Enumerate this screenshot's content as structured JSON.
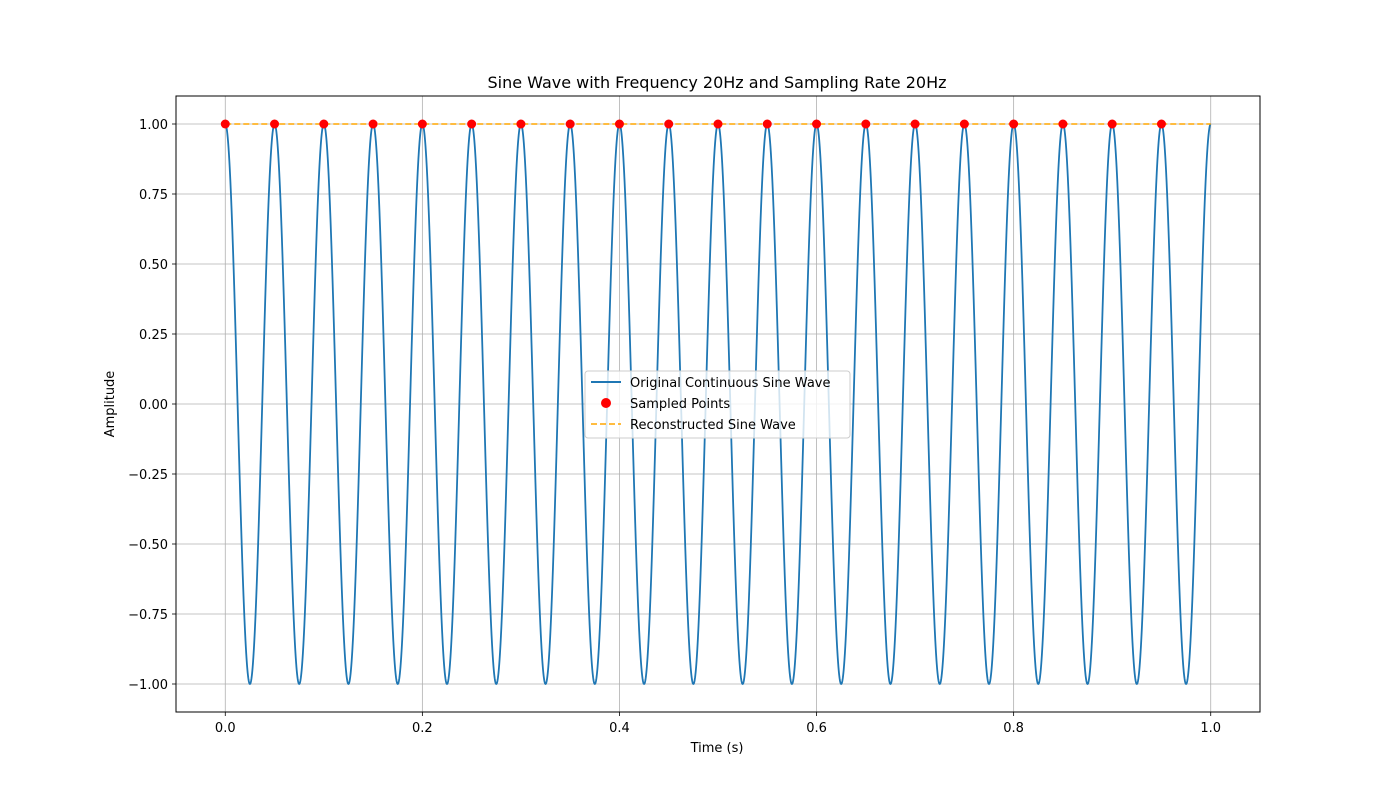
{
  "chart_data": {
    "type": "line",
    "title": "Sine Wave with Frequency 20Hz and Sampling Rate 20Hz",
    "xlabel": "Time (s)",
    "ylabel": "Amplitude",
    "xlim": [
      -0.05,
      1.05
    ],
    "ylim": [
      -1.1,
      1.1
    ],
    "x_ticks": [
      0.0,
      0.2,
      0.4,
      0.6,
      0.8,
      1.0
    ],
    "x_tick_labels": [
      "0.0",
      "0.2",
      "0.4",
      "0.6",
      "0.8",
      "1.0"
    ],
    "y_ticks": [
      1.0,
      0.75,
      0.5,
      0.25,
      0.0,
      -0.25,
      -0.5,
      -0.75,
      -1.0
    ],
    "y_tick_labels": [
      "1.00",
      "0.75",
      "0.50",
      "0.25",
      "0.00",
      "−0.25",
      "−0.50",
      "−0.75",
      "−1.00"
    ],
    "grid": true,
    "legend_position": "center",
    "series": [
      {
        "name": "Original Continuous Sine Wave",
        "kind": "line",
        "color": "#1f77b4",
        "function": "cos",
        "frequency": 20,
        "x_range": [
          0,
          1
        ],
        "amplitude": 1
      },
      {
        "name": "Sampled Points",
        "kind": "scatter",
        "color": "#ff0000",
        "x": [
          0.0,
          0.05,
          0.1,
          0.15,
          0.2,
          0.25,
          0.3,
          0.35,
          0.4,
          0.45,
          0.5,
          0.55,
          0.6,
          0.65,
          0.7,
          0.75,
          0.8,
          0.85,
          0.9,
          0.95
        ],
        "y": [
          1,
          1,
          1,
          1,
          1,
          1,
          1,
          1,
          1,
          1,
          1,
          1,
          1,
          1,
          1,
          1,
          1,
          1,
          1,
          1
        ]
      },
      {
        "name": "Reconstructed Sine Wave",
        "kind": "dashed-line",
        "color": "#ffa500",
        "x": [
          0.0,
          1.0
        ],
        "y": [
          1,
          1
        ]
      }
    ]
  }
}
